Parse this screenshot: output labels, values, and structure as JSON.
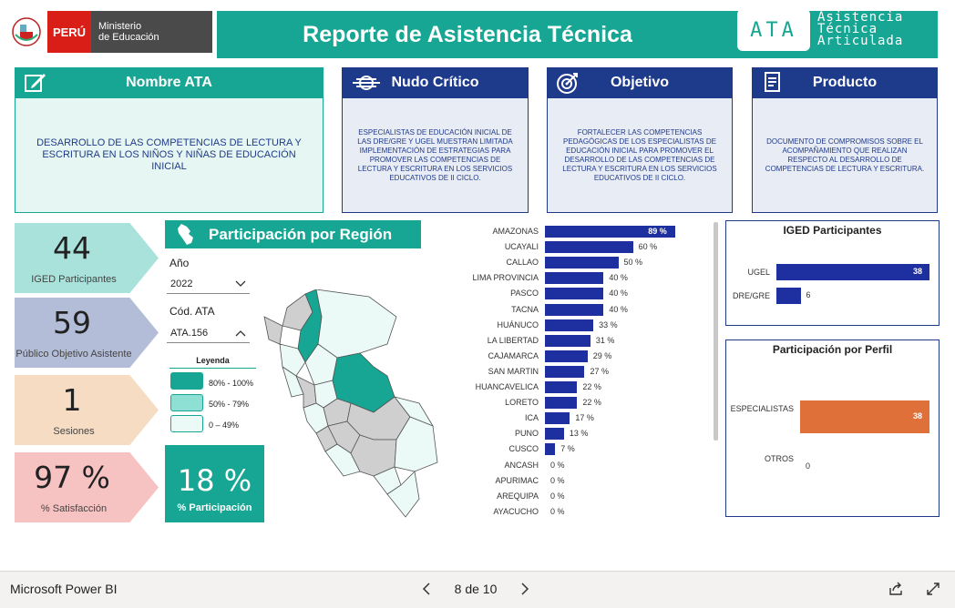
{
  "app": {
    "name": "Microsoft Power BI",
    "page": "8 de 10"
  },
  "header": {
    "title": "Reporte de Asistencia Técnica",
    "logo_peru": "PERÚ",
    "logo_ministry_1": "Ministerio",
    "logo_ministry_2": "de Educación",
    "ata_badge": "ATA",
    "ata_full_1": "Asistencia",
    "ata_full_2": "Técnica",
    "ata_full_3": "Articulada"
  },
  "cards": {
    "nombre": {
      "title": "Nombre ATA",
      "body": "DESARROLLO DE LAS COMPETENCIAS DE LECTURA Y ESCRITURA EN LOS NIÑOS Y NIÑAS DE EDUCACIÓN INICIAL"
    },
    "nudo": {
      "title": "Nudo Crítico",
      "body": "ESPECIALISTAS DE EDUCACIÓN INICIAL DE LAS DRE/GRE Y UGEL MUESTRAN LIMITADA IMPLEMENTACIÓN DE ESTRATEGIAS PARA PROMOVER LAS COMPETENCIAS DE LECTURA Y ESCRITURA EN LOS SERVICIOS EDUCATIVOS DE II CICLO."
    },
    "objetivo": {
      "title": "Objetivo",
      "body": "FORTALECER LAS COMPETENCIAS PEDAGÓGICAS DE LOS ESPECIALISTAS DE EDUCACIÓN INICIAL PARA PROMOVER EL DESARROLLO DE LAS COMPETENCIAS DE LECTURA Y ESCRITURA EN LOS SERVICIOS EDUCATIVOS DE II CICLO."
    },
    "producto": {
      "title": "Producto",
      "body": "DOCUMENTO DE COMPROMISOS SOBRE EL ACOMPAÑAMIENTO QUE REALIZAN RESPECTO AL DESARROLLO DE COMPETENCIAS DE LECTURA Y ESCRITURA."
    }
  },
  "kpis": [
    {
      "value": "44",
      "label": "IGED Participantes",
      "color": "#a9e2da"
    },
    {
      "value": "59",
      "label": "Público Objetivo Asistente",
      "color": "#b4bdd8"
    },
    {
      "value": "1",
      "label": "Sesiones",
      "color": "#f5dcc2"
    },
    {
      "value": "97 %",
      "label": "% Satisfacción",
      "color": "#f7c2c2"
    }
  ],
  "region": {
    "title": "Participación por Región",
    "year_label": "Año",
    "year_value": "2022",
    "code_label": "Cód. ATA",
    "code_value": "ATA.156",
    "legend_title": "Leyenda",
    "legend": [
      {
        "label": "80% - 100%",
        "color": "#17a693"
      },
      {
        "label": "50% - 79%",
        "color": "#8fe0d4"
      },
      {
        "label": "0 – 49%",
        "color": "#ebfaf7"
      }
    ],
    "pct_value": "18 %",
    "pct_label": "% Participación"
  },
  "chart_data": [
    {
      "type": "bar",
      "orientation": "horizontal",
      "categories": [
        "AMAZONAS",
        "UCAYALI",
        "CALLAO",
        "LIMA PROVINCIA",
        "PASCO",
        "TACNA",
        "HUÁNUCO",
        "LA LIBERTAD",
        "CAJAMARCA",
        "SAN MARTIN",
        "HUANCAVELICA",
        "LORETO",
        "ICA",
        "PUNO",
        "CUSCO",
        "ANCASH",
        "APURIMAC",
        "AREQUIPA",
        "AYACUCHO"
      ],
      "values": [
        89,
        60,
        50,
        40,
        40,
        40,
        33,
        31,
        29,
        27,
        22,
        22,
        17,
        13,
        7,
        0,
        0,
        0,
        0
      ],
      "labels": [
        "89 %",
        "60 %",
        "50 %",
        "40 %",
        "40 %",
        "40 %",
        "33 %",
        "31 %",
        "29 %",
        "27 %",
        "22 %",
        "22 %",
        "17 %",
        "13 %",
        "7 %",
        "0 %",
        "0 %",
        "0 %",
        "0 %"
      ],
      "xlim": [
        0,
        100
      ],
      "color": "#1e30a0"
    },
    {
      "type": "bar",
      "orientation": "horizontal",
      "title": "IGED Participantes",
      "categories": [
        "UGEL",
        "DRE/GRE"
      ],
      "values": [
        38,
        6
      ],
      "labels": [
        "38",
        "6"
      ],
      "xlim": [
        0,
        38
      ],
      "color": "#1e30a0"
    },
    {
      "type": "bar",
      "orientation": "horizontal",
      "title": "Participación por Perfil",
      "categories": [
        "ESPECIALISTAS",
        "OTROS"
      ],
      "values": [
        38,
        0
      ],
      "labels": [
        "38",
        "0"
      ],
      "xlim": [
        0,
        38
      ],
      "color": "#e0703a"
    }
  ]
}
